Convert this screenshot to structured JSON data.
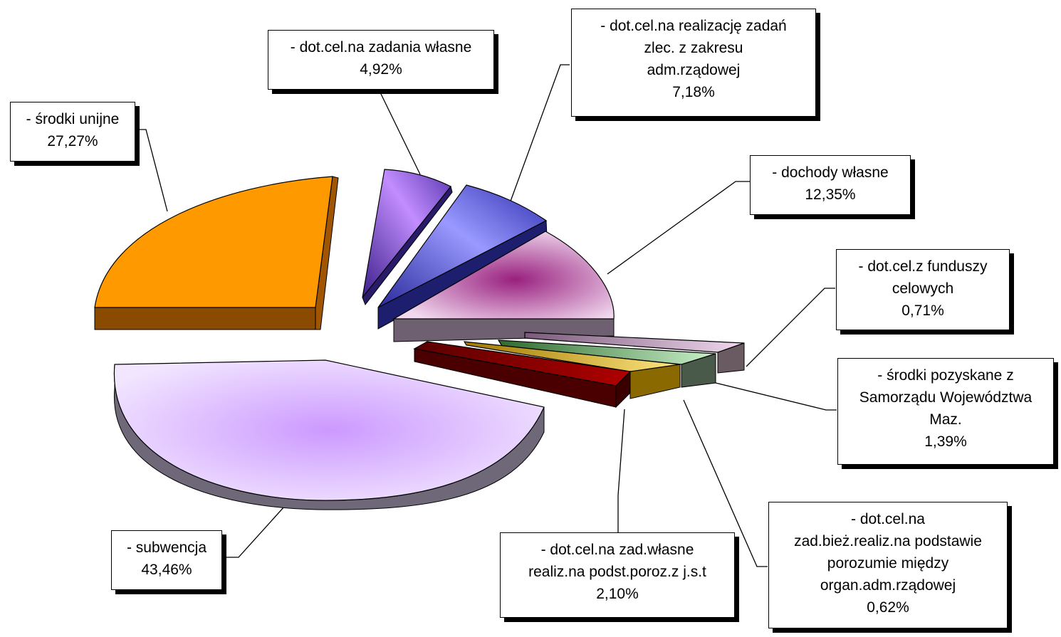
{
  "chart_data": {
    "type": "pie",
    "title": "",
    "legend": "none",
    "slices": [
      {
        "label": "- subwencja",
        "value": 43.46,
        "display": "43,46%",
        "color": "#cc99ff"
      },
      {
        "label": "- środki unijne",
        "value": 27.27,
        "display": "27,27%",
        "color": "#ff9900"
      },
      {
        "label": "- dot.cel.na zadania własne",
        "value": 4.92,
        "display": "4,92%",
        "color": "#9966ff"
      },
      {
        "label": "- dot.cel.na realizację zadań zlec. z zakresu adm.rządowej",
        "value": 7.18,
        "display": "7,18%",
        "color": "#6666ff"
      },
      {
        "label": "- dochody własne",
        "value": 12.35,
        "display": "12,35%",
        "color": "#993399"
      },
      {
        "label": "- dot.cel.z funduszy celowych",
        "value": 0.71,
        "display": "0,71%",
        "color": "#cc99cc"
      },
      {
        "label": "- środki pozyskane z Samorządu Województwa Maz.",
        "value": 1.39,
        "display": "1,39%",
        "color": "#99cc99"
      },
      {
        "label": "- dot.cel.na zad.bież.realiz.na podstawie porozumie między organ.adm.rządowej",
        "value": 0.62,
        "display": "0,62%",
        "color": "#ffcc00"
      },
      {
        "label": "- dot.cel.na zad.własne realiz.na podst.poroz.z j.s.t",
        "value": 2.1,
        "display": "2,10%",
        "color": "#990000"
      }
    ]
  },
  "labels": {
    "subwencja": {
      "lines": [
        "- subwencja"
      ],
      "value": "43,46%"
    },
    "srodki_unijne": {
      "lines": [
        "- środki unijne"
      ],
      "value": "27,27%"
    },
    "zadania_wlasne": {
      "lines": [
        "- dot.cel.na zadania własne"
      ],
      "value": "4,92%"
    },
    "adm_rzadowej": {
      "lines": [
        "- dot.cel.na realizację zadań",
        "zlec. z zakresu",
        "adm.rządowej"
      ],
      "value": "7,18%"
    },
    "dochody_wlasne": {
      "lines": [
        "- dochody własne"
      ],
      "value": "12,35%"
    },
    "fundusze_celowe": {
      "lines": [
        "- dot.cel.z funduszy",
        "celowych"
      ],
      "value": "0,71%"
    },
    "samorzad": {
      "lines": [
        "- środki pozyskane z",
        "Samorządu Województwa",
        "Maz."
      ],
      "value": "1,39%"
    },
    "porozumienie": {
      "lines": [
        "- dot.cel.na",
        "zad.bież.realiz.na podstawie",
        "porozumie między",
        "organ.adm.rządowej"
      ],
      "value": "0,62%"
    },
    "jst": {
      "lines": [
        "- dot.cel.na zad.własne",
        "realiz.na podst.poroz.z j.s.t"
      ],
      "value": "2,10%"
    }
  }
}
